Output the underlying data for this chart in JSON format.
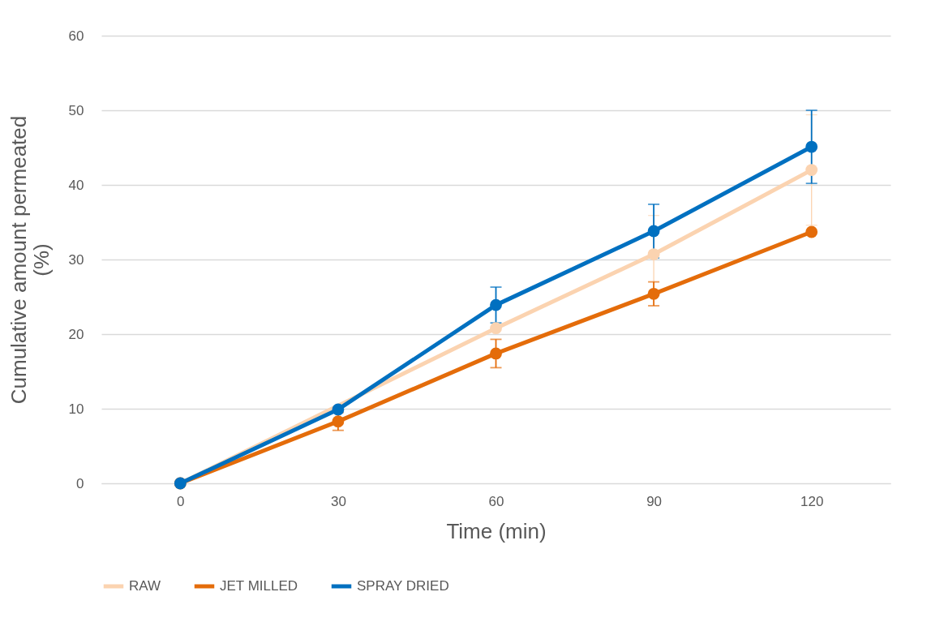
{
  "chart_data": {
    "type": "line",
    "xlabel": "Time (min)",
    "ylabel": "Cumulative amount permeated (%)",
    "categories": [
      "0",
      "30",
      "60",
      "90",
      "120"
    ],
    "ylim": [
      0,
      60
    ],
    "yticks": [
      0,
      10,
      20,
      30,
      40,
      50,
      60
    ],
    "grid": "y",
    "legend": "bottom",
    "marker": "circle",
    "line_style": "solid",
    "series": [
      {
        "name": "RAW",
        "color": "#fbd3b0",
        "values": [
          0,
          null,
          20.8,
          30.7,
          42.0
        ],
        "errors": [
          null,
          null,
          null,
          5.2,
          7.4
        ]
      },
      {
        "name": "JET MILLED",
        "color": "#e46c0a",
        "values": [
          0,
          8.3,
          17.4,
          25.4,
          33.7
        ],
        "errors": [
          null,
          1.2,
          1.9,
          1.6,
          null
        ]
      },
      {
        "name": "SPRAY DRIED",
        "color": "#0070c0",
        "values": [
          0,
          9.9,
          23.9,
          33.8,
          45.1
        ],
        "errors": [
          null,
          null,
          2.4,
          3.6,
          4.9
        ]
      }
    ]
  }
}
